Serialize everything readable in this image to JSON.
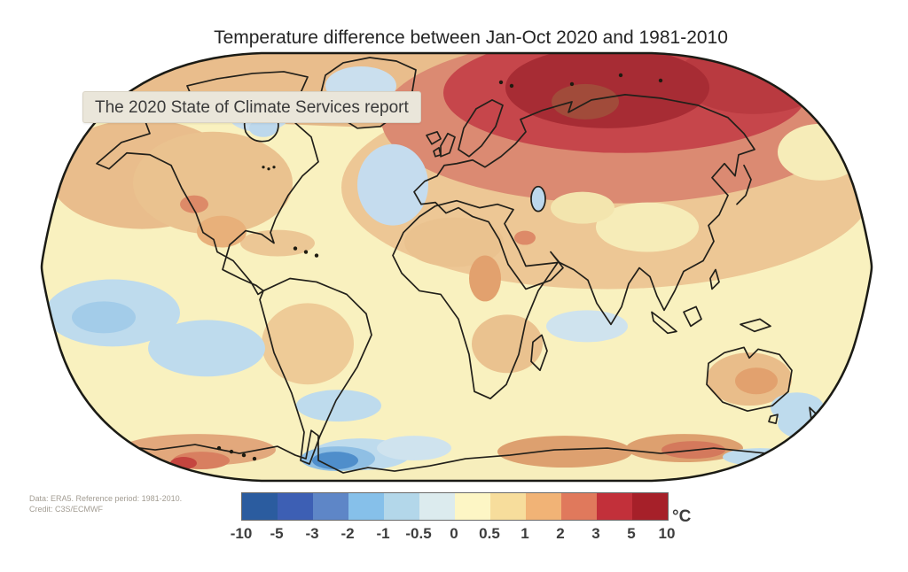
{
  "title": "Temperature difference between Jan-Oct 2020 and 1981-2010",
  "tooltip": {
    "text": "The 2020 State of Climate Services report"
  },
  "credit": {
    "line1": "Data: ERA5.  Reference period: 1981-2010.",
    "line2": "Credit: C3S/ECMWF"
  },
  "colorbar": {
    "unit": "°C",
    "tick_labels": [
      "-10",
      "-5",
      "-3",
      "-2",
      "-1",
      "-0.5",
      "0",
      "0.5",
      "1",
      "2",
      "3",
      "5",
      "10"
    ],
    "segment_colors": [
      "#2b5c9f",
      "#3d5fb4",
      "#5e86c7",
      "#86c0ea",
      "#b3d7ea",
      "#dcebee",
      "#fdf6c5",
      "#f7dd9c",
      "#f1b376",
      "#e0795c",
      "#c2303a",
      "#a62029"
    ]
  },
  "chart_data": {
    "type": "heatmap",
    "title": "Temperature difference between Jan-Oct 2020 and 1981-2010",
    "projection": "Robinson world map",
    "variable": "Surface air temperature anomaly",
    "units": "°C",
    "period": "Jan-Oct 2020",
    "reference_period": "1981-2010",
    "data_source": "ERA5",
    "credit": "C3S/ECMWF",
    "legend_position": "bottom",
    "colorbar": {
      "bin_edges": [
        -10,
        -5,
        -3,
        -2,
        -1,
        -0.5,
        0,
        0.5,
        1,
        2,
        3,
        5,
        10
      ],
      "colors": [
        "#2b5c9f",
        "#3d5fb4",
        "#5e86c7",
        "#86c0ea",
        "#b3d7ea",
        "#dcebee",
        "#fdf6c5",
        "#f7dd9c",
        "#f1b376",
        "#e0795c",
        "#c2303a",
        "#a62029"
      ]
    },
    "notable_regions": [
      {
        "region": "Arctic Siberia / northern Russia",
        "anomaly_c": "+5 to +10"
      },
      {
        "region": "Eastern Europe and western Russia",
        "anomaly_c": "+2 to +3"
      },
      {
        "region": "Northern-hemisphere land (Europe, Asia, North America)",
        "anomaly_c": "+0.5 to +2"
      },
      {
        "region": "Tropical land and oceans",
        "anomaly_c": "0 to +1"
      },
      {
        "region": "North Atlantic south of Greenland",
        "anomaly_c": "-0.5 to 0"
      },
      {
        "region": "Equatorial / southeast Pacific (La Niña)",
        "anomaly_c": "-1 to -0.5"
      },
      {
        "region": "Southern Ocean near Antarctic Peninsula and Ross Sea",
        "anomaly_c": "-3 to -1"
      },
      {
        "region": "Parts of coastal East Antarctica",
        "anomaly_c": "+1 to +3"
      }
    ]
  }
}
